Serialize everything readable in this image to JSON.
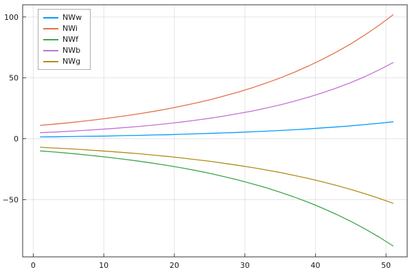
{
  "chart_data": {
    "type": "line",
    "title": "",
    "xlabel": "",
    "ylabel": "",
    "xlim": [
      -1.5,
      53
    ],
    "ylim": [
      -97,
      110
    ],
    "xticks": [
      0,
      10,
      20,
      30,
      40,
      50
    ],
    "yticks": [
      -50,
      0,
      50,
      100
    ],
    "grid": true,
    "legend_position": "top-left",
    "frame_color": "#363636",
    "grid_color": "rgba(0,0,0,0.1)",
    "tick_label_color": "#151515",
    "x": [
      1,
      3,
      5,
      7,
      9,
      11,
      13,
      15,
      17,
      19,
      21,
      23,
      25,
      27,
      29,
      31,
      33,
      35,
      37,
      39,
      41,
      43,
      45,
      47,
      49,
      51
    ],
    "series": [
      {
        "name": "NWw",
        "color": "#009af9",
        "values": [
          1.5,
          1.6,
          1.8,
          2.0,
          2.1,
          2.3,
          2.6,
          2.8,
          3.1,
          3.3,
          3.7,
          4.0,
          4.4,
          4.8,
          5.2,
          5.7,
          6.2,
          6.8,
          7.4,
          8.1,
          8.9,
          9.7,
          10.6,
          11.6,
          12.7,
          13.9
        ]
      },
      {
        "name": "NWi",
        "color": "#e26f46",
        "values": [
          11.0,
          12.0,
          13.1,
          14.4,
          15.7,
          17.2,
          18.8,
          20.5,
          22.4,
          24.5,
          26.8,
          29.3,
          32.0,
          35.0,
          38.2,
          41.8,
          45.7,
          49.9,
          54.6,
          59.7,
          65.2,
          71.3,
          77.9,
          85.2,
          93.1,
          101.8
        ]
      },
      {
        "name": "NWf",
        "color": "#3da44d",
        "values": [
          -10.0,
          -10.9,
          -11.9,
          -13.0,
          -14.2,
          -15.5,
          -16.9,
          -18.4,
          -20.1,
          -21.9,
          -23.9,
          -26.0,
          -28.4,
          -31.0,
          -33.8,
          -36.9,
          -40.2,
          -43.9,
          -47.9,
          -52.2,
          -57.0,
          -62.2,
          -67.8,
          -74.0,
          -80.7,
          -88.0
        ]
      },
      {
        "name": "NWb",
        "color": "#c271d2",
        "values": [
          5.0,
          5.5,
          6.1,
          6.8,
          7.5,
          8.3,
          9.2,
          10.1,
          11.2,
          12.4,
          13.7,
          15.2,
          16.8,
          18.6,
          20.6,
          22.7,
          25.2,
          27.8,
          30.8,
          34.1,
          37.7,
          41.7,
          46.1,
          51.0,
          56.5,
          62.5
        ]
      },
      {
        "name": "NWg",
        "color": "#ac8d18",
        "values": [
          -7.0,
          -7.6,
          -8.2,
          -8.9,
          -9.7,
          -10.5,
          -11.4,
          -12.3,
          -13.4,
          -14.5,
          -15.7,
          -17.1,
          -18.5,
          -20.1,
          -21.8,
          -23.6,
          -25.6,
          -27.7,
          -30.1,
          -32.6,
          -35.4,
          -38.4,
          -41.6,
          -45.1,
          -48.9,
          -53.0
        ]
      }
    ]
  }
}
